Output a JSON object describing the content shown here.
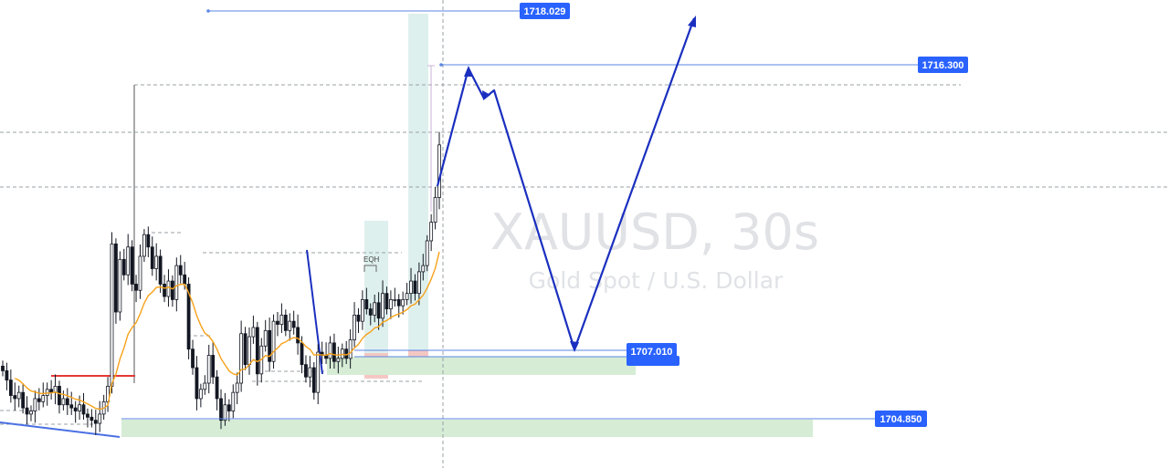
{
  "watermark": {
    "symbol": "XAUUSD, 30s",
    "description": "Gold Spot / U.S. Dollar"
  },
  "colors": {
    "candle": "#131722",
    "ema": "#f7a21b",
    "projection": "#1a2fbf",
    "level_line": "#5b86e5",
    "label_bg": "#2962ff",
    "demand_zone": "#d6ecd5",
    "highlight_column": "#d3ebe8",
    "supply_box": "#f4c7c3",
    "red_level": "#e53935"
  },
  "chart_data": {
    "type": "candlestick",
    "symbol": "XAUUSD",
    "interval": "30s",
    "y_unit": "USD",
    "grid": false,
    "price_labels": [
      {
        "name": "level-1718",
        "price": 1718.029,
        "text": "1718.029"
      },
      {
        "name": "level-1716",
        "price": 1716.3,
        "text": "1716.300"
      },
      {
        "name": "level-1707",
        "price": 1707.01,
        "text": "1707.010"
      },
      {
        "name": "level-1704",
        "price": 1704.85,
        "text": "1704.850"
      }
    ],
    "annotation_text": "EQH",
    "projection_path_prices": [
      1712.2,
      1716.2,
      1715.3,
      1715.7,
      1707.0,
      1718.0
    ],
    "close_series": [
      1706.4,
      1706.1,
      1705.6,
      1705.5,
      1705.7,
      1705.2,
      1705.0,
      1705.1,
      1705.5,
      1705.4,
      1705.6,
      1705.8,
      1705.7,
      1705.9,
      1705.3,
      1705.5,
      1705.3,
      1705.2,
      1705.1,
      1705.3,
      1705.0,
      1704.9,
      1704.8,
      1704.7,
      1705.0,
      1705.4,
      1705.9,
      1710.5,
      1708.3,
      1710.0,
      1709.5,
      1710.4,
      1709.2,
      1709.0,
      1710.1,
      1710.8,
      1710.4,
      1709.7,
      1710.1,
      1709.2,
      1708.8,
      1709.3,
      1708.7,
      1709.8,
      1709.5,
      1709.2,
      1707.1,
      1706.5,
      1705.5,
      1705.8,
      1706.0,
      1706.9,
      1706.2,
      1705.5,
      1704.8,
      1705.3,
      1705.1,
      1705.7,
      1706.0,
      1707.6,
      1706.6,
      1707.5,
      1707.8,
      1706.3,
      1707.2,
      1707.7,
      1706.7,
      1708.0,
      1707.9,
      1708.2,
      1707.7,
      1708.0,
      1707.8,
      1707.3,
      1706.6,
      1706.2,
      1706.5,
      1705.7,
      1707.0,
      1706.9,
      1706.8,
      1707.3,
      1706.7,
      1706.8,
      1707.1,
      1706.8,
      1707.4,
      1708.2,
      1708.0,
      1708.7,
      1708.4,
      1708.2,
      1708.6,
      1708.1,
      1708.9,
      1708.4,
      1708.7,
      1708.7,
      1708.5,
      1708.7,
      1708.9,
      1709.3,
      1708.9,
      1709.6,
      1709.8,
      1710.6,
      1711.2,
      1712.0,
      1713.7
    ]
  }
}
